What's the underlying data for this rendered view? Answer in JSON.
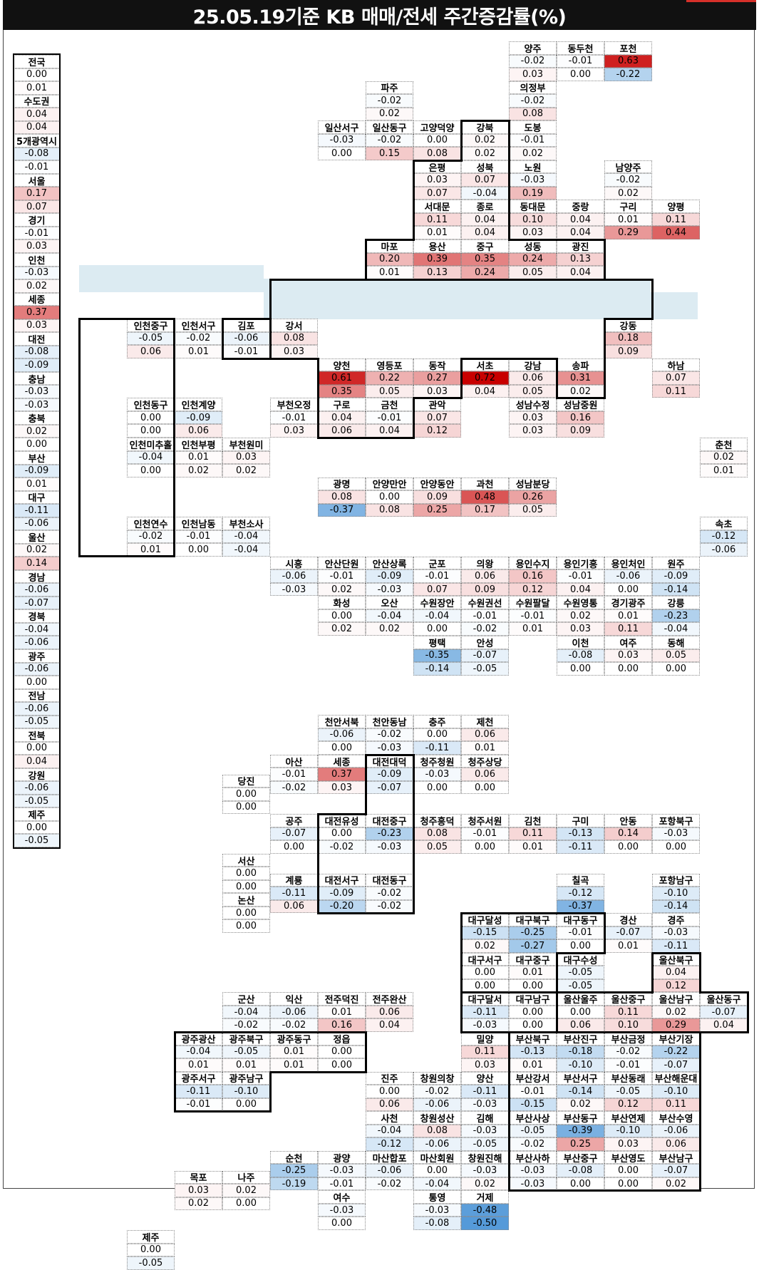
{
  "title": "25.05.19기준 KB 매매/전세 주간증감률(%)",
  "colors": {
    "positive": "#d62828",
    "negative": "#2b7bc7",
    "band": "#dcebf2"
  },
  "column": [
    [
      "전국",
      "0.00",
      "0.01"
    ],
    [
      "수도권",
      "0.04",
      "0.04"
    ],
    [
      "5개광역시",
      "-0.08",
      "-0.01"
    ],
    [
      "서울",
      "0.17",
      "0.07"
    ],
    [
      "경기",
      "-0.01",
      "0.03"
    ],
    [
      "인천",
      "-0.03",
      "0.02"
    ],
    [
      "세종",
      "0.37",
      "0.03"
    ],
    [
      "대전",
      "-0.08",
      "-0.09"
    ],
    [
      "충남",
      "-0.03",
      "-0.03"
    ],
    [
      "충북",
      "0.02",
      "0.00"
    ],
    [
      "부산",
      "-0.09",
      "0.01"
    ],
    [
      "대구",
      "-0.11",
      "-0.06"
    ],
    [
      "울산",
      "0.02",
      "0.14"
    ],
    [
      "경남",
      "-0.06",
      "-0.07"
    ],
    [
      "경북",
      "-0.04",
      "-0.06"
    ],
    [
      "광주",
      "-0.06",
      "0.00"
    ],
    [
      "전남",
      "-0.06",
      "-0.05"
    ],
    [
      "전북",
      "0.00",
      "0.04"
    ],
    [
      "강원",
      "-0.06",
      "-0.05"
    ],
    [
      "제주",
      "0.00",
      "-0.05"
    ]
  ],
  "regions": [
    [
      "양주",
      9,
      0,
      "-0.02",
      "0.03"
    ],
    [
      "동두천",
      10,
      0,
      "-0.01",
      "0.00"
    ],
    [
      "포천",
      11,
      0,
      "0.63",
      "-0.22"
    ],
    [
      "파주",
      6,
      1,
      "-0.02",
      "0.02"
    ],
    [
      "의정부",
      9,
      1,
      "-0.02",
      "0.08"
    ],
    [
      "일산서구",
      5,
      2,
      "-0.03",
      "0.00"
    ],
    [
      "일산동구",
      6,
      2,
      "-0.02",
      "0.15"
    ],
    [
      "고양덕양",
      7,
      2,
      "0.00",
      "0.08"
    ],
    [
      "강북",
      8,
      2,
      "0.02",
      "0.02"
    ],
    [
      "도봉",
      9,
      2,
      "-0.01",
      "0.02"
    ],
    [
      "은평",
      7,
      3,
      "0.03",
      "0.07"
    ],
    [
      "성북",
      8,
      3,
      "0.07",
      "-0.04"
    ],
    [
      "노원",
      9,
      3,
      "-0.03",
      "0.19"
    ],
    [
      "남양주",
      11,
      3,
      "-0.02",
      "0.02"
    ],
    [
      "서대문",
      7,
      4,
      "0.11",
      "0.01"
    ],
    [
      "종로",
      8,
      4,
      "0.04",
      "0.04"
    ],
    [
      "동대문",
      9,
      4,
      "0.10",
      "0.03"
    ],
    [
      "중랑",
      10,
      4,
      "0.04",
      "0.04"
    ],
    [
      "구리",
      11,
      4,
      "0.01",
      "0.29"
    ],
    [
      "양평",
      12,
      4,
      "0.11",
      "0.44"
    ],
    [
      "마포",
      6,
      5,
      "0.20",
      "0.01"
    ],
    [
      "용산",
      7,
      5,
      "0.39",
      "0.13"
    ],
    [
      "중구",
      8,
      5,
      "0.35",
      "0.24"
    ],
    [
      "성동",
      9,
      5,
      "0.24",
      "0.05"
    ],
    [
      "광진",
      10,
      5,
      "0.13",
      "0.04"
    ],
    [
      "인천중구",
      1,
      7,
      "-0.05",
      "0.06"
    ],
    [
      "인천서구",
      2,
      7,
      "-0.02",
      "0.01"
    ],
    [
      "김포",
      3,
      7,
      "-0.06",
      "-0.01"
    ],
    [
      "강서",
      4,
      7,
      "0.08",
      "0.03"
    ],
    [
      "강동",
      11,
      7,
      "0.18",
      "0.09"
    ],
    [
      "양천",
      5,
      8,
      "0.61",
      "0.35"
    ],
    [
      "영등포",
      6,
      8,
      "0.22",
      "0.05"
    ],
    [
      "동작",
      7,
      8,
      "0.27",
      "0.03"
    ],
    [
      "서초",
      8,
      8,
      "0.72",
      "0.04"
    ],
    [
      "강남",
      9,
      8,
      "0.06",
      "0.05"
    ],
    [
      "송파",
      10,
      8,
      "0.31",
      "0.02"
    ],
    [
      "하남",
      12,
      8,
      "0.07",
      "0.11"
    ],
    [
      "인천동구",
      1,
      9,
      "0.00",
      "0.00"
    ],
    [
      "인천계양",
      2,
      9,
      "-0.09",
      "0.06"
    ],
    [
      "부천오정",
      4,
      9,
      "-0.01",
      "0.03"
    ],
    [
      "구로",
      5,
      9,
      "0.04",
      "0.06"
    ],
    [
      "금천",
      6,
      9,
      "-0.01",
      "0.04"
    ],
    [
      "관악",
      7,
      9,
      "0.07",
      "0.12"
    ],
    [
      "성남수정",
      9,
      9,
      "0.03",
      "0.03"
    ],
    [
      "성남중원",
      10,
      9,
      "0.16",
      "0.09"
    ],
    [
      "인천미추홀",
      1,
      10,
      "-0.04",
      "0.00"
    ],
    [
      "인천부평",
      2,
      10,
      "0.01",
      "0.02"
    ],
    [
      "부천원미",
      3,
      10,
      "0.03",
      "0.02"
    ],
    [
      "춘천",
      13,
      10,
      "0.02",
      "0.01"
    ],
    [
      "광명",
      5,
      11,
      "0.08",
      "-0.37"
    ],
    [
      "안양만안",
      6,
      11,
      "0.00",
      "0.08"
    ],
    [
      "안양동안",
      7,
      11,
      "0.09",
      "0.25"
    ],
    [
      "과천",
      8,
      11,
      "0.48",
      "0.17"
    ],
    [
      "성남분당",
      9,
      11,
      "0.26",
      "0.05"
    ],
    [
      "인천연수",
      1,
      12,
      "-0.02",
      "0.01"
    ],
    [
      "인천남동",
      2,
      12,
      "-0.01",
      "0.00"
    ],
    [
      "부천소사",
      3,
      12,
      "-0.04",
      "-0.04"
    ],
    [
      "속초",
      13,
      12,
      "-0.12",
      "-0.06"
    ],
    [
      "시흥",
      4,
      13,
      "-0.06",
      "-0.03"
    ],
    [
      "안산단원",
      5,
      13,
      "-0.01",
      "0.02"
    ],
    [
      "안산상록",
      6,
      13,
      "-0.09",
      "-0.03"
    ],
    [
      "군포",
      7,
      13,
      "-0.01",
      "0.07"
    ],
    [
      "의왕",
      8,
      13,
      "0.06",
      "0.09"
    ],
    [
      "용인수지",
      9,
      13,
      "0.16",
      "0.12"
    ],
    [
      "용인기흥",
      10,
      13,
      "-0.01",
      "0.04"
    ],
    [
      "용인처인",
      11,
      13,
      "-0.06",
      "0.00"
    ],
    [
      "원주",
      12,
      13,
      "-0.09",
      "-0.14"
    ],
    [
      "화성",
      5,
      14,
      "0.00",
      "0.02"
    ],
    [
      "오산",
      6,
      14,
      "-0.04",
      "0.02"
    ],
    [
      "수원장안",
      7,
      14,
      "-0.04",
      "0.00"
    ],
    [
      "수원권선",
      8,
      14,
      "-0.01",
      "-0.02"
    ],
    [
      "수원팔달",
      9,
      14,
      "-0.01",
      "0.01"
    ],
    [
      "수원영통",
      10,
      14,
      "0.02",
      "0.03"
    ],
    [
      "경기광주",
      11,
      14,
      "0.01",
      "0.11"
    ],
    [
      "강릉",
      12,
      14,
      "-0.23",
      "-0.04"
    ],
    [
      "평택",
      7,
      15,
      "-0.35",
      "-0.14"
    ],
    [
      "안성",
      8,
      15,
      "-0.07",
      "-0.05"
    ],
    [
      "이천",
      10,
      15,
      "-0.08",
      "0.00"
    ],
    [
      "여주",
      11,
      15,
      "0.03",
      "0.00"
    ],
    [
      "동해",
      12,
      15,
      "0.05",
      "0.00"
    ],
    [
      "천안서북",
      5,
      17,
      "-0.06",
      "0.00"
    ],
    [
      "천안동남",
      6,
      17,
      "-0.02",
      "-0.03"
    ],
    [
      "충주",
      7,
      17,
      "0.00",
      "-0.11"
    ],
    [
      "제천",
      8,
      17,
      "0.06",
      "0.01"
    ],
    [
      "아산",
      4,
      18,
      "-0.01",
      "-0.02"
    ],
    [
      "세종",
      5,
      18,
      "0.37",
      "0.03"
    ],
    [
      "대전대덕",
      6,
      18,
      "-0.09",
      "-0.07"
    ],
    [
      "청주청원",
      7,
      18,
      "-0.03",
      "0.00"
    ],
    [
      "청주상당",
      8,
      18,
      "0.06",
      "0.00"
    ],
    [
      "당진",
      3,
      18.5,
      "0.00",
      "0.00"
    ],
    [
      "공주",
      4,
      19.5,
      "-0.07",
      "0.00"
    ],
    [
      "대전유성",
      5,
      19.5,
      "0.00",
      "-0.02"
    ],
    [
      "대전중구",
      6,
      19.5,
      "-0.23",
      "-0.03"
    ],
    [
      "청주흥덕",
      7,
      19.5,
      "0.08",
      "0.05"
    ],
    [
      "청주서원",
      8,
      19.5,
      "-0.01",
      "0.00"
    ],
    [
      "김천",
      9,
      19.5,
      "0.11",
      "0.01"
    ],
    [
      "구미",
      10,
      19.5,
      "-0.13",
      "-0.11"
    ],
    [
      "안동",
      11,
      19.5,
      "0.14",
      "0.00"
    ],
    [
      "포항북구",
      12,
      19.5,
      "-0.03",
      "0.00"
    ],
    [
      "서산",
      3,
      20.5,
      "0.00",
      "0.00"
    ],
    [
      "계룡",
      4,
      21,
      "-0.11",
      "0.06"
    ],
    [
      "대전서구",
      5,
      21,
      "-0.09",
      "-0.20"
    ],
    [
      "대전동구",
      6,
      21,
      "-0.02",
      "-0.02"
    ],
    [
      "칠곡",
      10,
      21,
      "-0.12",
      "-0.37"
    ],
    [
      "포항남구",
      12,
      21,
      "-0.10",
      "-0.14"
    ],
    [
      "논산",
      3,
      21.5,
      "0.00",
      "0.00"
    ],
    [
      "대구달성",
      8,
      22,
      "-0.15",
      "0.02"
    ],
    [
      "대구북구",
      9,
      22,
      "-0.25",
      "-0.27"
    ],
    [
      "대구동구",
      10,
      22,
      "-0.01",
      "0.00"
    ],
    [
      "경산",
      11,
      22,
      "-0.07",
      "0.01"
    ],
    [
      "경주",
      12,
      22,
      "-0.03",
      "-0.11"
    ],
    [
      "대구서구",
      8,
      23,
      "0.00",
      "0.00"
    ],
    [
      "대구중구",
      9,
      23,
      "0.01",
      "0.00"
    ],
    [
      "대구수성",
      10,
      23,
      "-0.05",
      "-0.05"
    ],
    [
      "울산북구",
      12,
      23,
      "0.04",
      "0.12"
    ],
    [
      "군산",
      3,
      24,
      "-0.04",
      "-0.02"
    ],
    [
      "익산",
      4,
      24,
      "-0.06",
      "-0.02"
    ],
    [
      "전주덕진",
      5,
      24,
      "0.01",
      "0.16"
    ],
    [
      "전주완산",
      6,
      24,
      "0.06",
      "0.04"
    ],
    [
      "대구달서",
      8,
      24,
      "-0.11",
      "-0.03"
    ],
    [
      "대구남구",
      9,
      24,
      "0.00",
      "0.00"
    ],
    [
      "울산울주",
      10,
      24,
      "0.00",
      "0.06"
    ],
    [
      "울산중구",
      11,
      24,
      "0.11",
      "0.10"
    ],
    [
      "울산남구",
      12,
      24,
      "0.02",
      "0.29"
    ],
    [
      "울산동구",
      13,
      24,
      "-0.07",
      "0.04"
    ],
    [
      "광주광산",
      2,
      25,
      "-0.04",
      "0.01"
    ],
    [
      "광주북구",
      3,
      25,
      "-0.05",
      "0.01"
    ],
    [
      "광주동구",
      4,
      25,
      "0.01",
      "0.01"
    ],
    [
      "정읍",
      5,
      25,
      "0.00",
      "0.00"
    ],
    [
      "밀양",
      8,
      25,
      "0.11",
      "0.03"
    ],
    [
      "부산북구",
      9,
      25,
      "-0.13",
      "0.01"
    ],
    [
      "부산진구",
      10,
      25,
      "-0.18",
      "-0.10"
    ],
    [
      "부산금정",
      11,
      25,
      "-0.02",
      "-0.01"
    ],
    [
      "부산기장",
      12,
      25,
      "-0.22",
      "-0.07"
    ],
    [
      "광주서구",
      2,
      26,
      "-0.11",
      "-0.01"
    ],
    [
      "광주남구",
      3,
      26,
      "-0.10",
      "0.00"
    ],
    [
      "진주",
      6,
      26,
      "0.00",
      "0.06"
    ],
    [
      "창원의창",
      7,
      26,
      "-0.02",
      "-0.06"
    ],
    [
      "양산",
      8,
      26,
      "-0.11",
      "-0.03"
    ],
    [
      "부산강서",
      9,
      26,
      "-0.01",
      "-0.15"
    ],
    [
      "부산서구",
      10,
      26,
      "-0.14",
      "0.02"
    ],
    [
      "부산동래",
      11,
      26,
      "-0.05",
      "0.12"
    ],
    [
      "부산해운대",
      12,
      26,
      "-0.10",
      "0.11"
    ],
    [
      "사천",
      6,
      27,
      "-0.04",
      "-0.12"
    ],
    [
      "창원성산",
      7,
      27,
      "0.08",
      "-0.06"
    ],
    [
      "김해",
      8,
      27,
      "-0.03",
      "-0.05"
    ],
    [
      "부산사상",
      9,
      27,
      "-0.05",
      "-0.02"
    ],
    [
      "부산동구",
      10,
      27,
      "-0.39",
      "0.25"
    ],
    [
      "부산연제",
      11,
      27,
      "-0.10",
      "0.03"
    ],
    [
      "부산수영",
      12,
      27,
      "-0.06",
      "0.06"
    ],
    [
      "순천",
      4,
      28,
      "-0.25",
      "-0.19"
    ],
    [
      "광양",
      5,
      28,
      "-0.03",
      "-0.01"
    ],
    [
      "마산합포",
      6,
      28,
      "-0.06",
      "-0.02"
    ],
    [
      "마산회원",
      7,
      28,
      "0.00",
      "-0.04"
    ],
    [
      "창원진해",
      8,
      28,
      "-0.03",
      "0.02"
    ],
    [
      "부산사하",
      9,
      28,
      "-0.03",
      "-0.03"
    ],
    [
      "부산중구",
      10,
      28,
      "-0.08",
      "0.00"
    ],
    [
      "부산영도",
      11,
      28,
      "0.00",
      "0.00"
    ],
    [
      "부산남구",
      12,
      28,
      "-0.07",
      "0.02"
    ],
    [
      "목포",
      2,
      28.5,
      "0.03",
      "0.02"
    ],
    [
      "나주",
      3,
      28.5,
      "0.02",
      "0.00"
    ],
    [
      "여수",
      5,
      29,
      "-0.03",
      "0.00"
    ],
    [
      "통영",
      7,
      29,
      "-0.03",
      "-0.08"
    ],
    [
      "거제",
      8,
      29,
      "-0.48",
      "-0.50"
    ],
    [
      "제주",
      1,
      30,
      "0.00",
      "-0.05"
    ]
  ]
}
